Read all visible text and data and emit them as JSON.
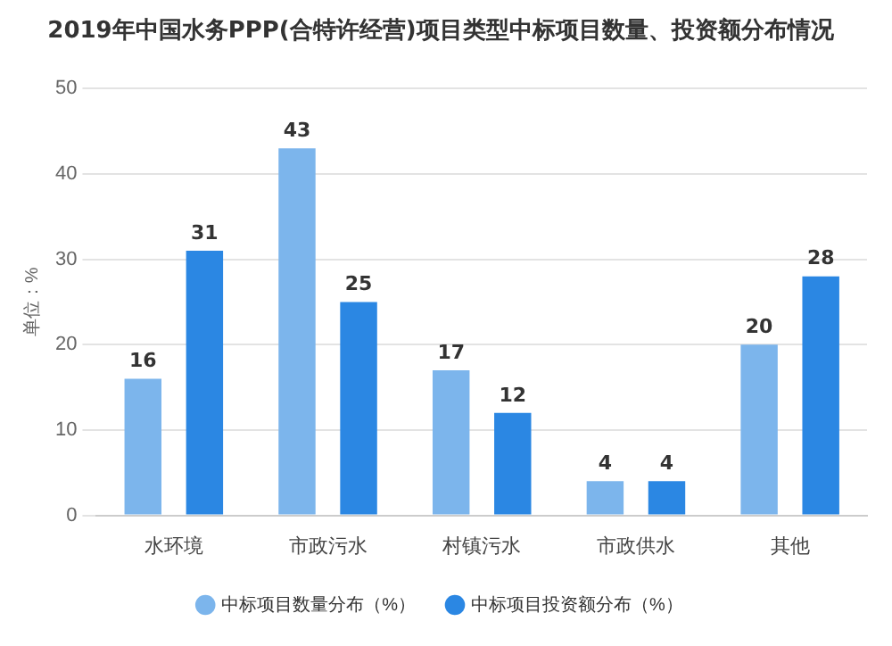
{
  "chart_data": {
    "type": "bar",
    "title": "2019年中国水务PPP(合特许经营)项目类型中标项目数量、投资额分布情况",
    "ylabel": "单位：%",
    "categories": [
      "水环境",
      "市政污水",
      "村镇污水",
      "市政供水",
      "其他"
    ],
    "series": [
      {
        "name": "中标项目数量分布（%）",
        "color": "#7cb5ec",
        "values": [
          16,
          43,
          17,
          4,
          20
        ]
      },
      {
        "name": "中标项目投资额分布（%）",
        "color": "#2b87e3",
        "values": [
          31,
          25,
          12,
          4,
          28
        ]
      }
    ],
    "ylim": [
      0,
      50
    ],
    "yticks": [
      0,
      10,
      20,
      30,
      40,
      50
    ],
    "grid": "y",
    "legend": "bottom",
    "data_labels": true
  }
}
